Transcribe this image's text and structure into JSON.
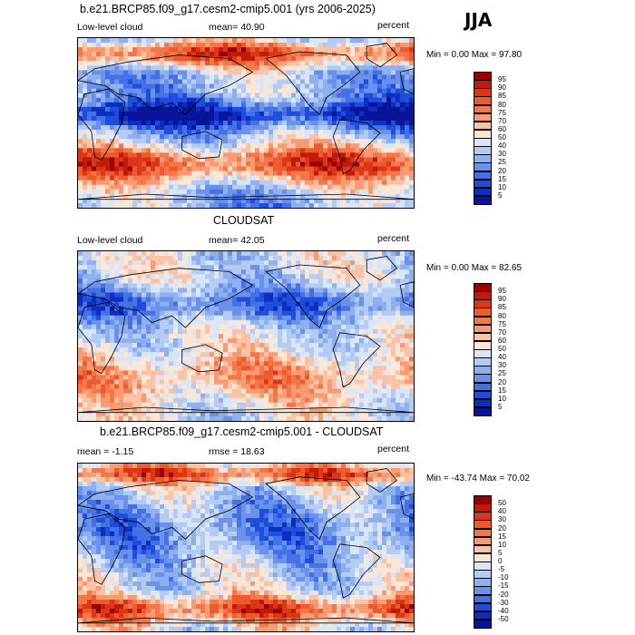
{
  "season": "JJA",
  "panels": [
    {
      "id": "model",
      "title": "b.e21.BRCP85.f09_g17.cesm2-cmip5.001 (yrs 2006-2025)",
      "left_label": "Low-level cloud",
      "mean_text": "mean=  40.90",
      "units": "percent",
      "minmax": "Min =   0.00 Max =  97.80",
      "colorbar_labels": [
        "95",
        "90",
        "85",
        "80",
        "75",
        "70",
        "60",
        "50",
        "40",
        "30",
        "25",
        "20",
        "15",
        "10",
        "5"
      ],
      "colors": [
        "#9b0000",
        "#c01a0a",
        "#dc3518",
        "#ec5b2e",
        "#f4774a",
        "#f89a72",
        "#fbc3a6",
        "#fde6d6",
        "#d8e6f8",
        "#b4cbf4",
        "#8fb0ef",
        "#6a92ea",
        "#4472e6",
        "#1f4ddc",
        "#0d2ec0",
        "#08149a"
      ]
    },
    {
      "id": "obs",
      "title": "CLOUDSAT",
      "left_label": "Low-level cloud",
      "mean_text": "mean=  42.05",
      "units": "percent",
      "minmax": "Min =   0.00 Max =  82.65",
      "colorbar_labels": [
        "95",
        "90",
        "85",
        "80",
        "75",
        "70",
        "60",
        "50",
        "40",
        "30",
        "25",
        "20",
        "15",
        "10",
        "5"
      ],
      "colors": [
        "#9b0000",
        "#c01a0a",
        "#dc3518",
        "#ec5b2e",
        "#f4774a",
        "#f89a72",
        "#fbc3a6",
        "#fde6d6",
        "#d8e6f8",
        "#b4cbf4",
        "#8fb0ef",
        "#6a92ea",
        "#4472e6",
        "#1f4ddc",
        "#0d2ec0",
        "#08149a"
      ]
    },
    {
      "id": "diff",
      "title": "b.e21.BRCP85.f09_g17.cesm2-cmip5.001 - CLOUDSAT",
      "left_label": "mean =  -1.15",
      "mean_text": "rmse =  18.63",
      "units": "percent",
      "minmax": "Min = -43.74 Max =  70.02",
      "colorbar_labels": [
        "50",
        "40",
        "30",
        "20",
        "15",
        "10",
        "5",
        "0",
        "-5",
        "-10",
        "-15",
        "-20",
        "-30",
        "-40",
        "-50"
      ],
      "colors": [
        "#9b0000",
        "#c01a0a",
        "#dc3518",
        "#ec5b2e",
        "#f4774a",
        "#f89a72",
        "#fbc3a6",
        "#fde6d6",
        "#d8e6f8",
        "#b4cbf4",
        "#8fb0ef",
        "#6a92ea",
        "#4472e6",
        "#1f4ddc",
        "#0d2ec0",
        "#08149a"
      ]
    }
  ]
}
